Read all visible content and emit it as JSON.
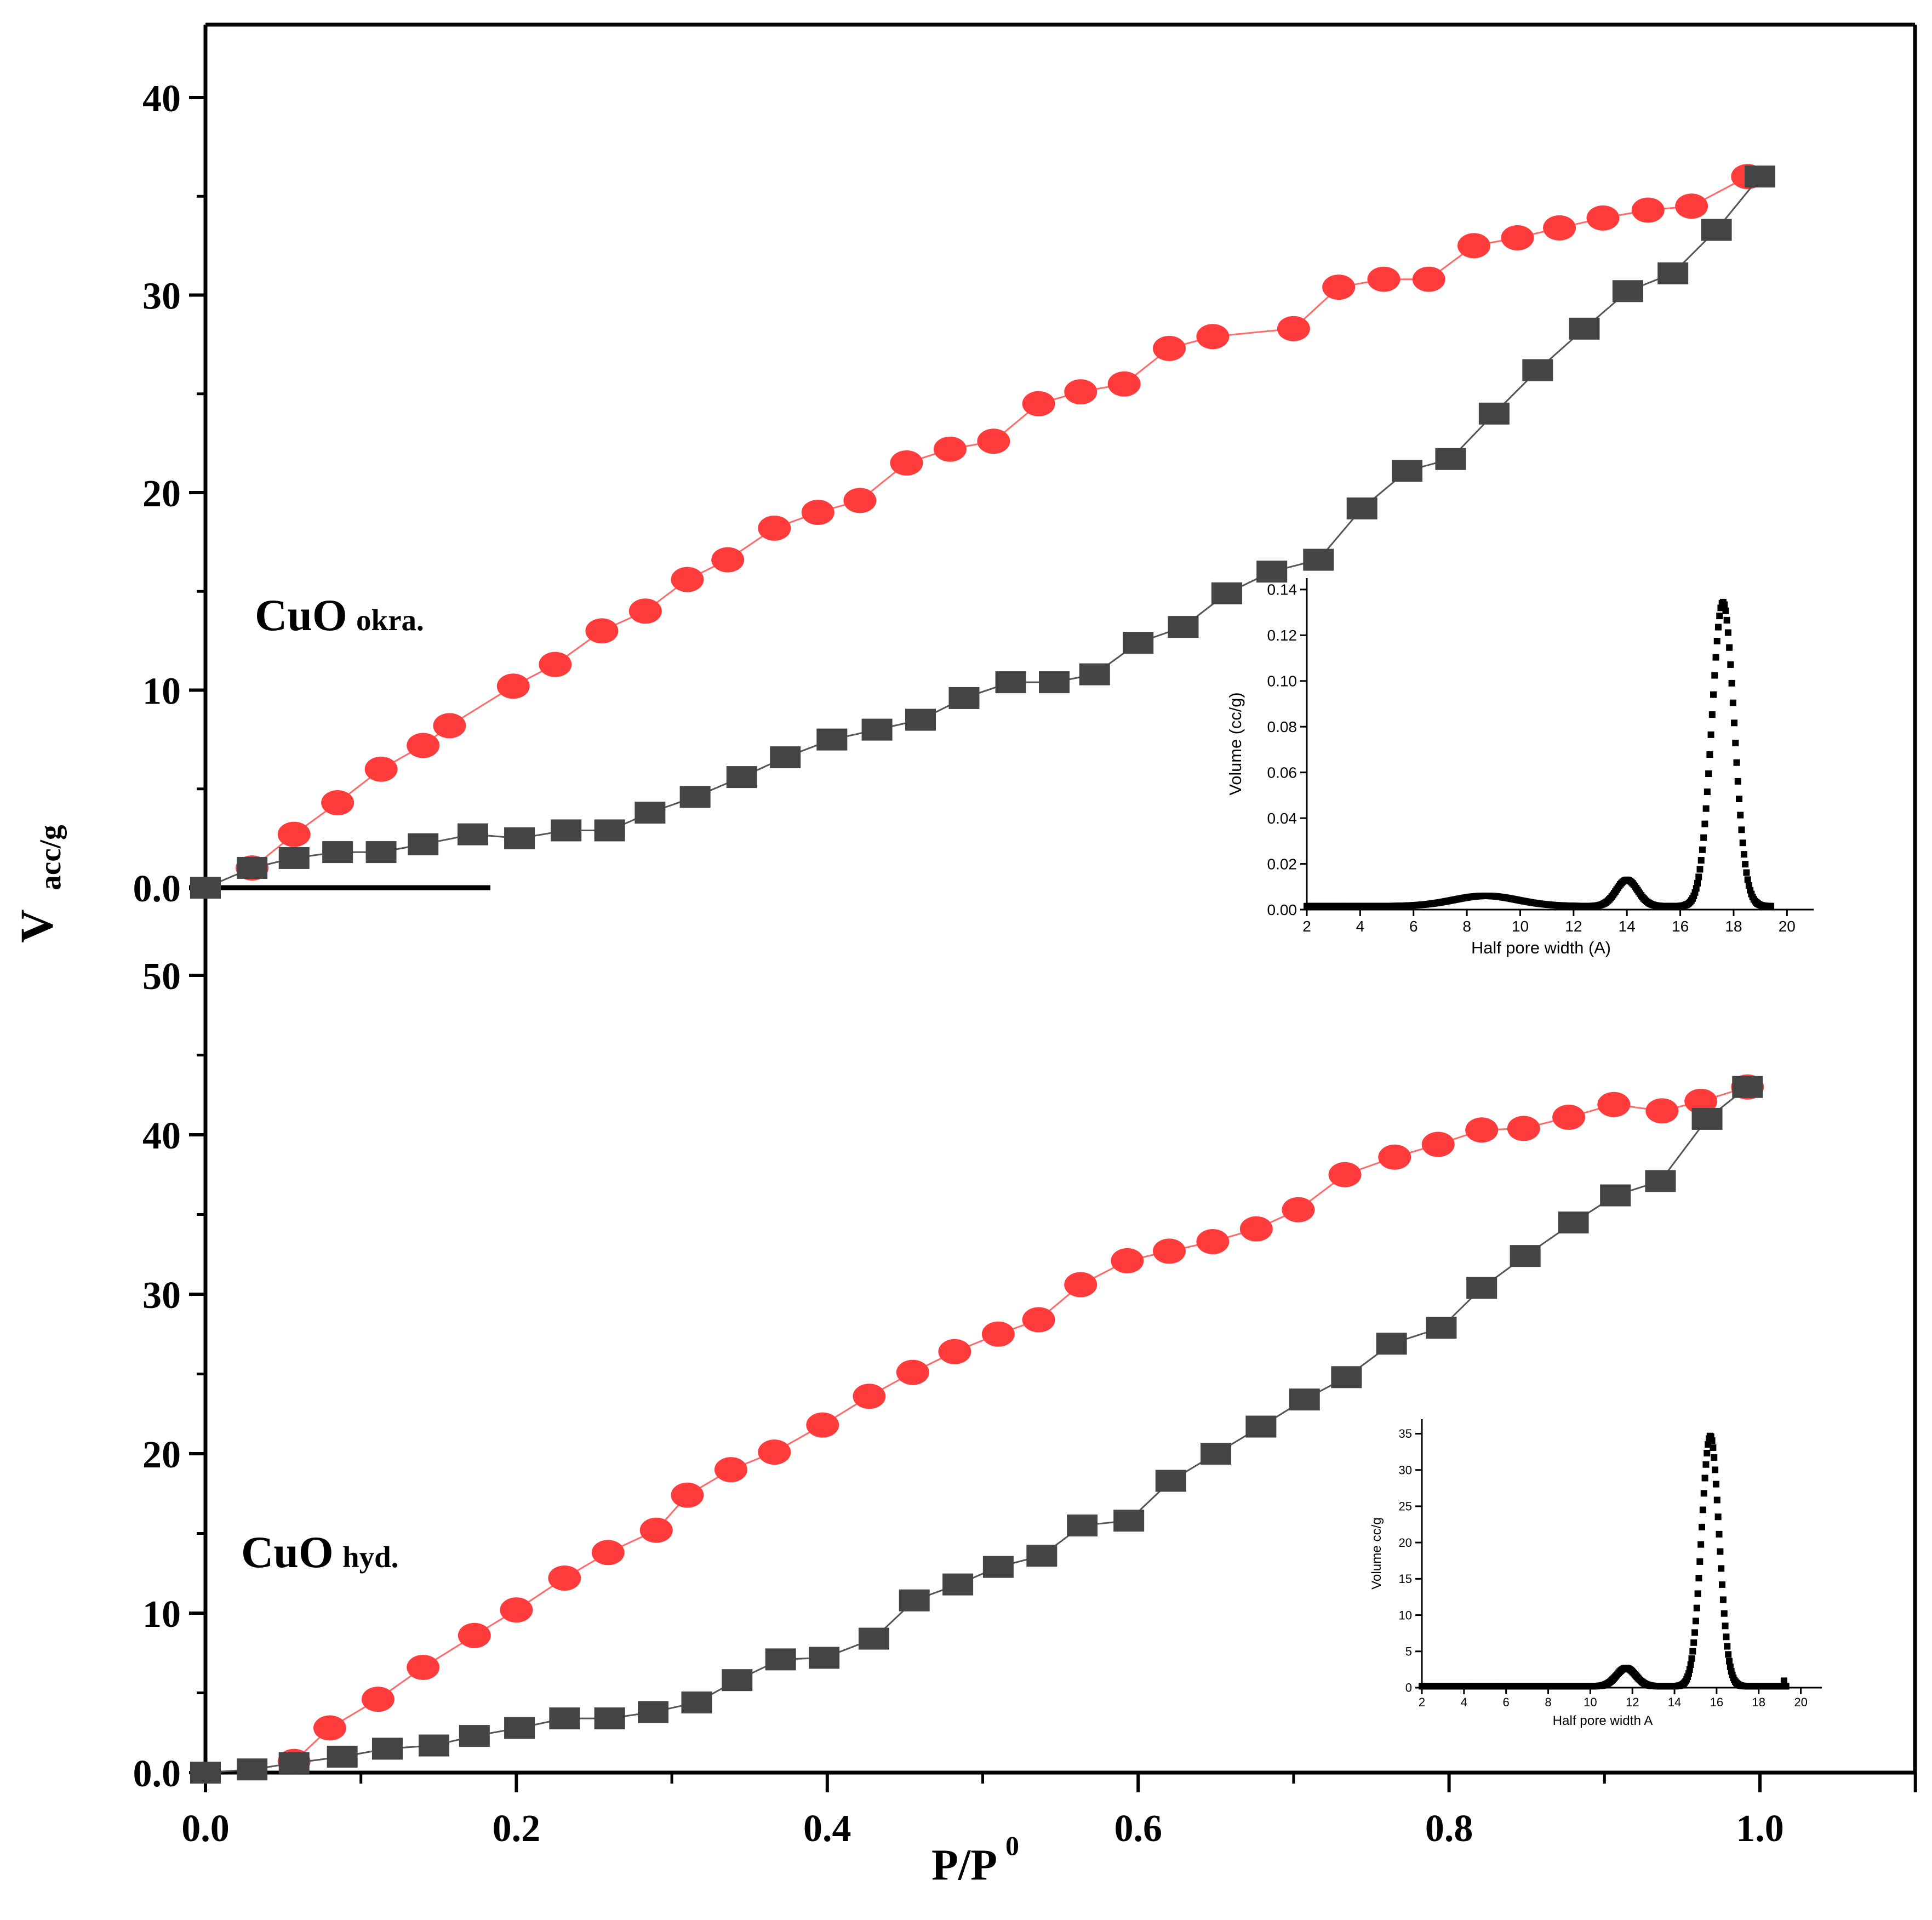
{
  "colors": {
    "adsorption": "#ff3b3b",
    "adsorption_line": "#ff6a6a",
    "desorption": "#444444",
    "desorption_line": "#555555",
    "axis": "#000000",
    "inset_marker": "#000000"
  },
  "chart_data": [
    {
      "id": "main",
      "type": "line",
      "xlabel": "P/P",
      "xlabel_sup": "0",
      "ylabel": "V",
      "ylabel_sub": "acc/g",
      "xlim": [
        0.0,
        1.1
      ],
      "x_ticks": [
        0.0,
        0.2,
        0.4,
        0.6,
        0.8,
        1.0
      ],
      "x_tick_labels": [
        "0.0",
        "0.2",
        "0.4",
        "0.6",
        "0.8",
        "1.0"
      ],
      "panels": [
        {
          "name": "CuO okra",
          "label_main": "CuO",
          "label_sub": "okra.",
          "ylim": [
            0,
            43
          ],
          "y_ticks": [
            0.0,
            10,
            20,
            30,
            40
          ],
          "y_tick_labels": [
            "0.0",
            "10",
            "20",
            "30",
            "40"
          ],
          "series": [
            {
              "name": "adsorption",
              "marker": "circle",
              "x": [
                0.03,
                0.057,
                0.085,
                0.113,
                0.14,
                0.157,
                0.198,
                0.225,
                0.255,
                0.283,
                0.31,
                0.336,
                0.366,
                0.394,
                0.421,
                0.451,
                0.479,
                0.507,
                0.536,
                0.563,
                0.591,
                0.62,
                0.648,
                0.7,
                0.729,
                0.758,
                0.787,
                0.816,
                0.844,
                0.871,
                0.899,
                0.928,
                0.956,
                0.992
              ],
              "y": [
                1.0,
                2.7,
                4.3,
                6.0,
                7.2,
                8.2,
                10.2,
                11.3,
                13.0,
                14.0,
                15.6,
                16.6,
                18.2,
                19.0,
                19.6,
                21.5,
                22.2,
                22.6,
                24.5,
                25.1,
                25.5,
                27.3,
                27.9,
                28.3,
                30.4,
                30.8,
                30.8,
                32.5,
                32.9,
                33.4,
                33.9,
                34.3,
                34.5,
                36.0
              ]
            },
            {
              "name": "desorption",
              "marker": "square",
              "x": [
                0.0,
                0.03,
                0.057,
                0.085,
                0.113,
                0.14,
                0.172,
                0.202,
                0.232,
                0.26,
                0.286,
                0.315,
                0.345,
                0.373,
                0.403,
                0.432,
                0.46,
                0.488,
                0.518,
                0.546,
                0.572,
                0.6,
                0.629,
                0.657,
                0.686,
                0.716,
                0.744,
                0.773,
                0.801,
                0.829,
                0.857,
                0.887,
                0.915,
                0.944,
                0.972,
                1.0
              ],
              "y": [
                0.0,
                1.0,
                1.5,
                1.8,
                1.8,
                2.2,
                2.7,
                2.5,
                2.9,
                2.9,
                3.8,
                4.6,
                5.6,
                6.6,
                7.5,
                8.0,
                8.5,
                9.6,
                10.4,
                10.4,
                10.8,
                12.4,
                13.2,
                14.9,
                16.0,
                16.6,
                19.2,
                21.1,
                21.7,
                24.0,
                26.2,
                28.3,
                30.2,
                31.1,
                33.3,
                36.0
              ]
            }
          ]
        },
        {
          "name": "CuO hyd",
          "label_main": "CuO",
          "label_sub": "hyd.",
          "ylim": [
            0,
            55
          ],
          "y_ticks": [
            0.0,
            10,
            20,
            30,
            40,
            50
          ],
          "y_tick_labels": [
            "0.0",
            "10",
            "20",
            "30",
            "40",
            "50"
          ],
          "series": [
            {
              "name": "adsorption",
              "marker": "circle",
              "x": [
                0.057,
                0.08,
                0.111,
                0.14,
                0.173,
                0.2,
                0.231,
                0.259,
                0.29,
                0.31,
                0.338,
                0.366,
                0.397,
                0.427,
                0.455,
                0.482,
                0.51,
                0.536,
                0.563,
                0.593,
                0.62,
                0.648,
                0.676,
                0.703,
                0.733,
                0.765,
                0.793,
                0.821,
                0.848,
                0.877,
                0.906,
                0.937,
                0.962,
                0.992
              ],
              "y": [
                0.7,
                2.8,
                4.6,
                6.6,
                8.6,
                10.2,
                12.2,
                13.8,
                15.2,
                17.4,
                19.0,
                20.1,
                21.8,
                23.6,
                25.1,
                26.4,
                27.5,
                28.4,
                30.6,
                32.1,
                32.7,
                33.3,
                34.1,
                35.3,
                37.5,
                38.6,
                39.4,
                40.3,
                40.4,
                41.1,
                41.9,
                41.5,
                42.1,
                43.0
              ]
            },
            {
              "name": "desorption",
              "marker": "square",
              "x": [
                0.0,
                0.03,
                0.057,
                0.088,
                0.117,
                0.147,
                0.173,
                0.202,
                0.231,
                0.26,
                0.288,
                0.316,
                0.342,
                0.37,
                0.398,
                0.43,
                0.456,
                0.484,
                0.51,
                0.538,
                0.564,
                0.594,
                0.621,
                0.65,
                0.679,
                0.707,
                0.734,
                0.763,
                0.795,
                0.821,
                0.849,
                0.88,
                0.907,
                0.936,
                0.966,
                0.992
              ],
              "y": [
                0.0,
                0.2,
                0.6,
                1.0,
                1.5,
                1.7,
                2.3,
                2.8,
                3.4,
                3.4,
                3.8,
                4.4,
                5.8,
                7.1,
                7.2,
                8.4,
                10.8,
                11.8,
                12.9,
                13.6,
                15.5,
                15.8,
                18.3,
                20.0,
                21.7,
                23.4,
                24.8,
                26.9,
                27.9,
                30.4,
                32.4,
                34.5,
                36.2,
                37.1,
                41.0,
                43.0
              ]
            }
          ]
        }
      ]
    },
    {
      "id": "inset-okra",
      "type": "scatter",
      "xlabel": "Half pore width (A)",
      "ylabel": "Volume (cc/g)",
      "xlim": [
        2,
        21
      ],
      "ylim": [
        0,
        0.145
      ],
      "x_ticks": [
        2,
        4,
        6,
        8,
        10,
        12,
        14,
        16,
        18,
        20
      ],
      "x_tick_labels": [
        "2",
        "4",
        "6",
        "8",
        "10",
        "12",
        "14",
        "16",
        "18",
        "20"
      ],
      "y_ticks": [
        0.0,
        0.02,
        0.04,
        0.06,
        0.08,
        0.1,
        0.12,
        0.14
      ],
      "y_tick_labels": [
        "0.00",
        "0.02",
        "0.04",
        "0.06",
        "0.08",
        "0.10",
        "0.12",
        "0.14"
      ],
      "peaks": [
        {
          "center": 8.7,
          "height": 0.0045,
          "width": 1.2
        },
        {
          "center": 14.0,
          "height": 0.0115,
          "width": 0.4
        },
        {
          "center": 17.6,
          "height": 0.133,
          "width": 0.42
        }
      ],
      "baseline": 0.0015,
      "x_range": [
        2.0,
        19.4
      ],
      "n_points": 380
    },
    {
      "id": "inset-hyd",
      "type": "scatter",
      "xlabel": "Half pore width A",
      "ylabel": "Volume cc/g",
      "xlim": [
        2,
        21
      ],
      "ylim": [
        0,
        37
      ],
      "x_ticks": [
        2,
        4,
        6,
        8,
        10,
        12,
        14,
        16,
        18,
        20
      ],
      "x_tick_labels": [
        "2",
        "4",
        "6",
        "8",
        "10",
        "12",
        "14",
        "16",
        "18",
        "20"
      ],
      "y_ticks": [
        0,
        5,
        10,
        15,
        20,
        25,
        30,
        35
      ],
      "y_tick_labels": [
        "0",
        "5",
        "10",
        "15",
        "20",
        "25",
        "30",
        "35"
      ],
      "peaks": [
        {
          "center": 11.7,
          "height": 2.5,
          "width": 0.45
        },
        {
          "center": 15.7,
          "height": 34.5,
          "width": 0.42
        }
      ],
      "baseline": 0.2,
      "x_range": [
        2.0,
        19.3
      ],
      "n_points": 360,
      "end_point": {
        "x": 19.2,
        "y": 0.8
      }
    }
  ]
}
